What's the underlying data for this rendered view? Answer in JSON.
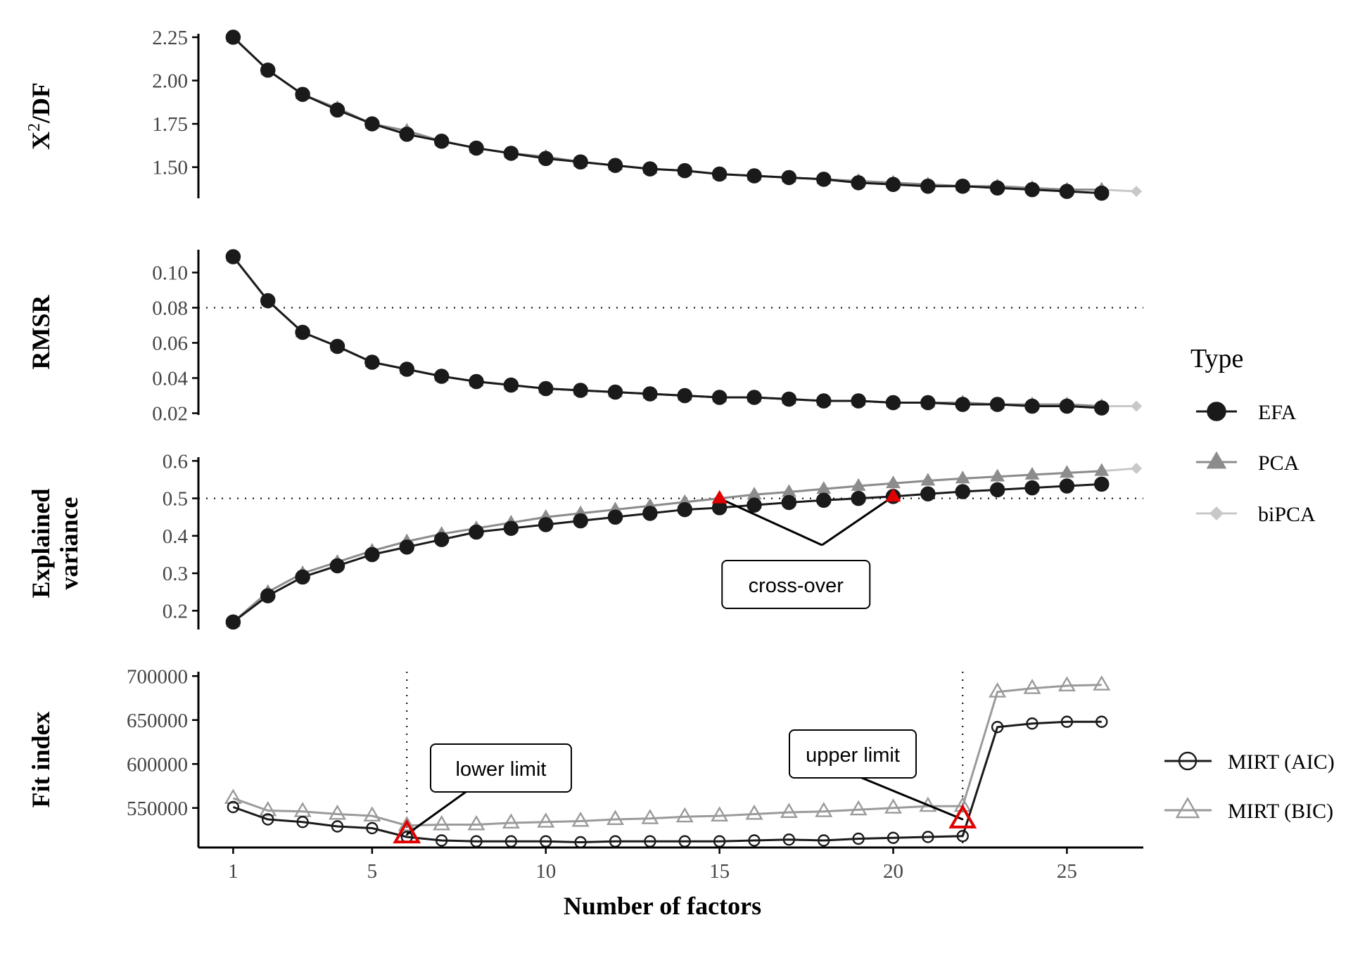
{
  "chart_data": {
    "type": "line",
    "xlabel": "Number of factors",
    "x_ticks": [
      1,
      5,
      10,
      15,
      20,
      25
    ],
    "x_range": [
      0,
      27.2
    ],
    "legend_type": {
      "title": "Type",
      "entries": [
        {
          "label": "EFA",
          "color": "#1a1a1a",
          "marker": "circle"
        },
        {
          "label": "PCA",
          "color": "#8c8c8c",
          "marker": "triangle"
        },
        {
          "label": "biPCA",
          "color": "#c8c8c8",
          "marker": "diamond"
        }
      ]
    },
    "legend_mirt": {
      "entries": [
        {
          "label": "MIRT (AIC)",
          "color": "#1a1a1a",
          "marker": "open-circle"
        },
        {
          "label": "MIRT (BIC)",
          "color": "#9a9a9a",
          "marker": "open-triangle"
        }
      ]
    },
    "panels": [
      {
        "id": "chisq",
        "ylabel_main": "X",
        "ylabel_sup": "2",
        "ylabel_rest": "/DF",
        "ylim": [
          1.32,
          2.27
        ],
        "y_ticks": [
          {
            "v": 1.5,
            "label": "1.50"
          },
          {
            "v": 1.75,
            "label": "1.75"
          },
          {
            "v": 2.0,
            "label": "2.00"
          },
          {
            "v": 2.25,
            "label": "2.25"
          }
        ],
        "series": [
          {
            "name": "EFA",
            "x": [
              1,
              2,
              3,
              4,
              5,
              6,
              7,
              8,
              9,
              10,
              11,
              12,
              13,
              14,
              15,
              16,
              17,
              18,
              19,
              20,
              21,
              22,
              23,
              24,
              25,
              26
            ],
            "values": [
              2.25,
              2.06,
              1.92,
              1.83,
              1.75,
              1.69,
              1.65,
              1.61,
              1.58,
              1.55,
              1.53,
              1.51,
              1.49,
              1.48,
              1.46,
              1.45,
              1.44,
              1.43,
              1.41,
              1.4,
              1.39,
              1.39,
              1.38,
              1.37,
              1.36,
              1.35
            ]
          },
          {
            "name": "PCA",
            "x": [
              1,
              2,
              3,
              4,
              5,
              6,
              7,
              8,
              9,
              10,
              11,
              12,
              13,
              14,
              15,
              16,
              17,
              18,
              19,
              20,
              21,
              22,
              23,
              24,
              25,
              26
            ],
            "values": [
              2.25,
              2.06,
              1.92,
              1.84,
              1.75,
              1.71,
              1.65,
              1.61,
              1.58,
              1.56,
              1.53,
              1.51,
              1.49,
              1.48,
              1.46,
              1.45,
              1.44,
              1.43,
              1.42,
              1.41,
              1.4,
              1.39,
              1.39,
              1.38,
              1.37,
              1.37
            ]
          },
          {
            "name": "biPCA",
            "x": [
              1,
              2,
              3,
              4,
              5,
              6,
              7,
              8,
              9,
              10,
              11,
              12,
              13,
              14,
              15,
              16,
              17,
              18,
              19,
              20,
              21,
              22,
              23,
              24,
              25,
              26,
              27
            ],
            "values": [
              2.25,
              2.06,
              1.92,
              1.84,
              1.75,
              1.71,
              1.65,
              1.61,
              1.58,
              1.56,
              1.53,
              1.51,
              1.49,
              1.48,
              1.46,
              1.45,
              1.44,
              1.43,
              1.42,
              1.41,
              1.4,
              1.39,
              1.39,
              1.38,
              1.37,
              1.37,
              1.36
            ]
          }
        ]
      },
      {
        "id": "rmsr",
        "ylabel": "RMSR",
        "ylim": [
          0.019,
          0.113
        ],
        "y_ticks": [
          {
            "v": 0.02,
            "label": "0.02"
          },
          {
            "v": 0.04,
            "label": "0.04"
          },
          {
            "v": 0.06,
            "label": "0.06"
          },
          {
            "v": 0.08,
            "label": "0.08"
          },
          {
            "v": 0.1,
            "label": "0.10"
          }
        ],
        "hline": 0.08,
        "series": [
          {
            "name": "EFA",
            "x": [
              1,
              2,
              3,
              4,
              5,
              6,
              7,
              8,
              9,
              10,
              11,
              12,
              13,
              14,
              15,
              16,
              17,
              18,
              19,
              20,
              21,
              22,
              23,
              24,
              25,
              26
            ],
            "values": [
              0.109,
              0.084,
              0.066,
              0.058,
              0.049,
              0.045,
              0.041,
              0.038,
              0.036,
              0.034,
              0.033,
              0.032,
              0.031,
              0.03,
              0.029,
              0.029,
              0.028,
              0.027,
              0.027,
              0.026,
              0.026,
              0.025,
              0.025,
              0.024,
              0.024,
              0.023
            ]
          },
          {
            "name": "PCA",
            "x": [
              1,
              2,
              3,
              4,
              5,
              6,
              7,
              8,
              9,
              10,
              11,
              12,
              13,
              14,
              15,
              16,
              17,
              18,
              19,
              20,
              21,
              22,
              23,
              24,
              25,
              26
            ],
            "values": [
              0.109,
              0.084,
              0.066,
              0.058,
              0.049,
              0.045,
              0.041,
              0.038,
              0.036,
              0.034,
              0.033,
              0.032,
              0.031,
              0.03,
              0.029,
              0.029,
              0.028,
              0.027,
              0.027,
              0.026,
              0.026,
              0.026,
              0.025,
              0.025,
              0.025,
              0.024
            ]
          },
          {
            "name": "biPCA",
            "x": [
              1,
              2,
              3,
              4,
              5,
              6,
              7,
              8,
              9,
              10,
              11,
              12,
              13,
              14,
              15,
              16,
              17,
              18,
              19,
              20,
              21,
              22,
              23,
              24,
              25,
              26,
              27
            ],
            "values": [
              0.109,
              0.084,
              0.066,
              0.058,
              0.049,
              0.045,
              0.041,
              0.038,
              0.036,
              0.034,
              0.033,
              0.032,
              0.031,
              0.03,
              0.029,
              0.029,
              0.028,
              0.027,
              0.027,
              0.026,
              0.026,
              0.026,
              0.025,
              0.025,
              0.025,
              0.024,
              0.024
            ]
          }
        ]
      },
      {
        "id": "variance",
        "ylabel_line1": "Explained",
        "ylabel_line2": "variance",
        "ylim": [
          0.15,
          0.61
        ],
        "y_ticks": [
          {
            "v": 0.2,
            "label": "0.2"
          },
          {
            "v": 0.3,
            "label": "0.3"
          },
          {
            "v": 0.4,
            "label": "0.4"
          },
          {
            "v": 0.5,
            "label": "0.5"
          },
          {
            "v": 0.6,
            "label": "0.6"
          }
        ],
        "hline": 0.5,
        "series": [
          {
            "name": "EFA",
            "x": [
              1,
              2,
              3,
              4,
              5,
              6,
              7,
              8,
              9,
              10,
              11,
              12,
              13,
              14,
              15,
              16,
              17,
              18,
              19,
              20,
              21,
              22,
              23,
              24,
              25,
              26
            ],
            "values": [
              0.17,
              0.24,
              0.29,
              0.32,
              0.35,
              0.37,
              0.39,
              0.41,
              0.42,
              0.43,
              0.44,
              0.45,
              0.46,
              0.47,
              0.475,
              0.482,
              0.489,
              0.495,
              0.5,
              0.505,
              0.512,
              0.518,
              0.523,
              0.528,
              0.533,
              0.538
            ]
          },
          {
            "name": "PCA",
            "x": [
              1,
              2,
              3,
              4,
              5,
              6,
              7,
              8,
              9,
              10,
              11,
              12,
              13,
              14,
              15,
              16,
              17,
              18,
              19,
              20,
              21,
              22,
              23,
              24,
              25,
              26
            ],
            "values": [
              0.17,
              0.25,
              0.3,
              0.33,
              0.36,
              0.385,
              0.405,
              0.42,
              0.435,
              0.45,
              0.46,
              0.47,
              0.48,
              0.49,
              0.5,
              0.51,
              0.517,
              0.525,
              0.533,
              0.54,
              0.547,
              0.553,
              0.558,
              0.563,
              0.568,
              0.573
            ]
          },
          {
            "name": "biPCA",
            "x": [
              1,
              2,
              3,
              4,
              5,
              6,
              7,
              8,
              9,
              10,
              11,
              12,
              13,
              14,
              15,
              16,
              17,
              18,
              19,
              20,
              21,
              22,
              23,
              24,
              25,
              26,
              27
            ],
            "values": [
              0.17,
              0.25,
              0.3,
              0.33,
              0.36,
              0.385,
              0.405,
              0.42,
              0.435,
              0.45,
              0.46,
              0.47,
              0.48,
              0.49,
              0.5,
              0.51,
              0.517,
              0.525,
              0.533,
              0.54,
              0.547,
              0.553,
              0.558,
              0.563,
              0.568,
              0.573,
              0.58
            ]
          }
        ],
        "crossover_points": [
          {
            "x": 15,
            "y": 0.5
          },
          {
            "x": 20,
            "y": 0.505
          }
        ],
        "annotation": {
          "label": "cross-over",
          "x": 17.2,
          "y": 0.25
        }
      },
      {
        "id": "fit",
        "ylabel": "Fit index",
        "ylim": [
          505000,
          705000
        ],
        "y_ticks": [
          {
            "v": 550000,
            "label": "550000"
          },
          {
            "v": 600000,
            "label": "600000"
          },
          {
            "v": 650000,
            "label": "650000"
          },
          {
            "v": 700000,
            "label": "700000"
          }
        ],
        "vlines": [
          6,
          22
        ],
        "series": [
          {
            "name": "MIRT (AIC)",
            "x": [
              1,
              2,
              3,
              4,
              5,
              6,
              7,
              8,
              9,
              10,
              11,
              12,
              13,
              14,
              15,
              16,
              17,
              18,
              19,
              20,
              21,
              22,
              23,
              24,
              25,
              26
            ],
            "values": [
              551000,
              537000,
              534000,
              529000,
              527000,
              517000,
              513000,
              512000,
              512000,
              512000,
              511000,
              512000,
              512000,
              512000,
              512000,
              513000,
              514000,
              513000,
              515000,
              516000,
              517000,
              518000,
              642000,
              646000,
              648000,
              648000
            ]
          },
          {
            "name": "MIRT (BIC)",
            "x": [
              1,
              2,
              3,
              4,
              5,
              6,
              7,
              8,
              9,
              10,
              11,
              12,
              13,
              14,
              15,
              16,
              17,
              18,
              19,
              20,
              21,
              22,
              23,
              24,
              25,
              26
            ],
            "values": [
              561000,
              547000,
              546000,
              543000,
              541000,
              530000,
              531000,
              531000,
              533000,
              534000,
              535000,
              537000,
              538000,
              540000,
              541000,
              543000,
              545000,
              546000,
              548000,
              550000,
              552000,
              552000,
              682000,
              686000,
              689000,
              690000
            ]
          }
        ],
        "limit_markers": [
          {
            "x": 6,
            "y": 520000
          },
          {
            "x": 22,
            "y": 537000
          }
        ],
        "annotations": [
          {
            "label": "lower limit",
            "x": 7.4,
            "y": 575000
          },
          {
            "label": "upper limit",
            "x": 20.4,
            "y": 588000
          }
        ]
      }
    ]
  }
}
